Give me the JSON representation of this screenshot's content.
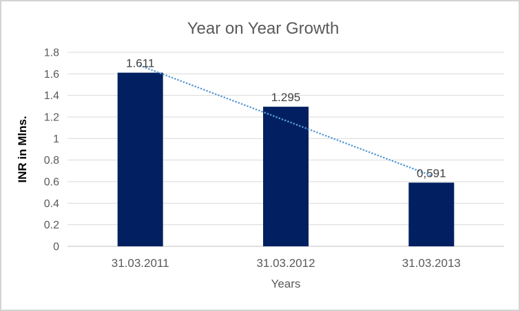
{
  "window": {
    "background": "#ffffff",
    "border_color": "#d3d3d3"
  },
  "chart_data": {
    "type": "bar",
    "title": "Year on Year Growth",
    "xlabel": "Years",
    "ylabel": "INR in Mlns.",
    "categories": [
      "31.03.2011",
      "31.03.2012",
      "31.03.2013"
    ],
    "values": [
      1.611,
      1.295,
      0.591
    ],
    "value_labels": [
      "1.611",
      "1.295",
      "0,591"
    ],
    "ylim": [
      0,
      1.8
    ],
    "ytick_step": 0.2,
    "yticks": [
      "0",
      "0.2",
      "0.4",
      "0.6",
      "0.8",
      "1",
      "1.2",
      "1.4",
      "1.6",
      "1.8"
    ],
    "grid": true,
    "legend": "none",
    "trendline": {
      "type": "linear",
      "style": "round-dotted",
      "start_value": 1.676,
      "end_value": 0.656,
      "color": "#5b9bd5"
    },
    "colors": {
      "bar": "#022061",
      "gridline": "#d9d9d9",
      "axis_line": "#bfbfbf",
      "title_text": "#595959",
      "tick_text": "#595959",
      "data_label_text": "#404040",
      "y_axis_title_text": "#000000",
      "x_axis_title_text": "#595959"
    }
  }
}
